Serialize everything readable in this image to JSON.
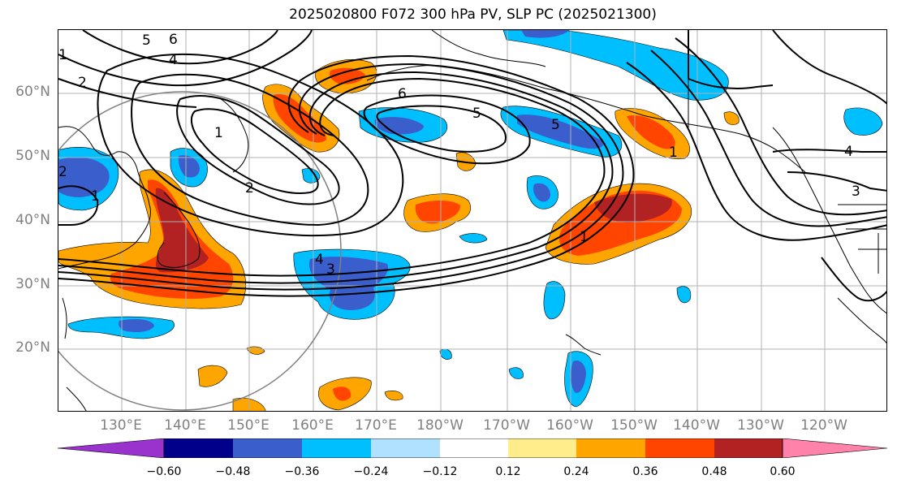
{
  "title": "2025020800 F072 300 hPa PV, SLP PC (2025021300)",
  "lat_labels": [
    "60°N",
    "50°N",
    "40°N",
    "30°N",
    "20°N"
  ],
  "lon_labels": [
    "130°E",
    "140°E",
    "150°E",
    "160°E",
    "170°E",
    "180°W",
    "170°W",
    "160°W",
    "150°W",
    "140°W",
    "130°W",
    "120°W"
  ],
  "colorbar": {
    "ticks": [
      "−0.60",
      "−0.48",
      "−0.36",
      "−0.24",
      "−0.12",
      "0.12",
      "0.24",
      "0.36",
      "0.48",
      "0.60"
    ],
    "colors": [
      "#9a32cd",
      "#00008b",
      "#3a5fcd",
      "#00bfff",
      "#b0e2ff",
      "#ffffff",
      "#ffec8b",
      "#ffa500",
      "#ff4500",
      "#b22222",
      "#ff82ab"
    ]
  },
  "contour_labels": [
    "6",
    "5",
    "4",
    "2",
    "1",
    "2",
    "1",
    "2",
    "4",
    "3",
    "6",
    "5",
    "5",
    "1",
    "1",
    "4",
    "3",
    "1"
  ],
  "colors": {
    "text": "#000000",
    "axis_label": "#808080",
    "grid": "#b0b0b0"
  }
}
